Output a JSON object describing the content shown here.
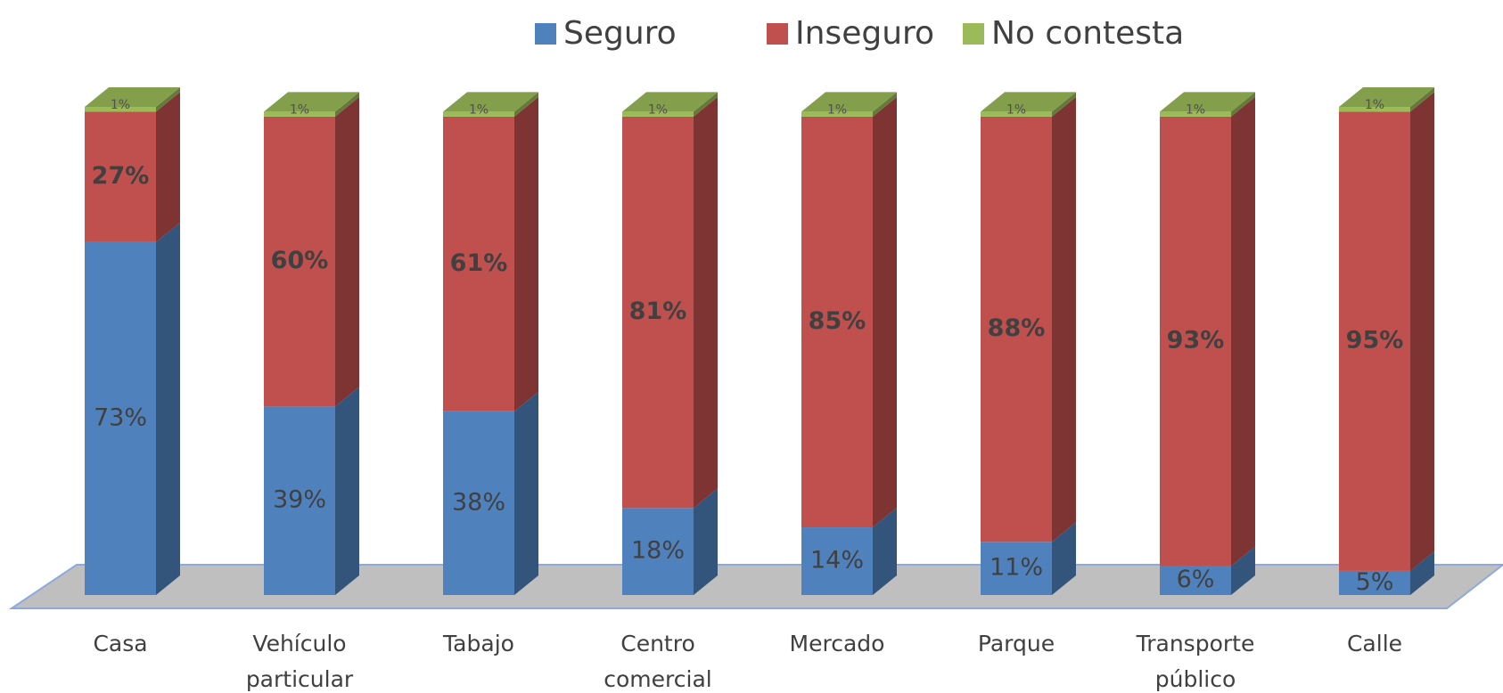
{
  "chart_data": {
    "type": "bar3d_stacked",
    "categories": [
      "Casa",
      "Vehículo particular",
      "Tabajo",
      "Centro comercial",
      "Mercado",
      "Parque",
      "Transporte público",
      "Calle"
    ],
    "series": [
      {
        "name": "Seguro",
        "color": "#4f81bd",
        "values": [
          73,
          39,
          38,
          18,
          14,
          11,
          6,
          5
        ],
        "value_labels": [
          "73%",
          "39%",
          "38%",
          "18%",
          "14%",
          "11%",
          "6%",
          "5%"
        ]
      },
      {
        "name": "Inseguro",
        "color": "#c0504d",
        "values": [
          27,
          60,
          61,
          81,
          85,
          88,
          93,
          95
        ],
        "value_labels": [
          "27%",
          "60%",
          "61%",
          "81%",
          "85%",
          "88%",
          "93%",
          "95%"
        ]
      },
      {
        "name": "No contesta",
        "color": "#9bbb59",
        "values": [
          1,
          1,
          1,
          1,
          1,
          1,
          1,
          1
        ],
        "value_labels": [
          "1%",
          "1%",
          "1%",
          "1%",
          "1%",
          "1%",
          "1%",
          "1%"
        ]
      }
    ],
    "legend": "top"
  }
}
